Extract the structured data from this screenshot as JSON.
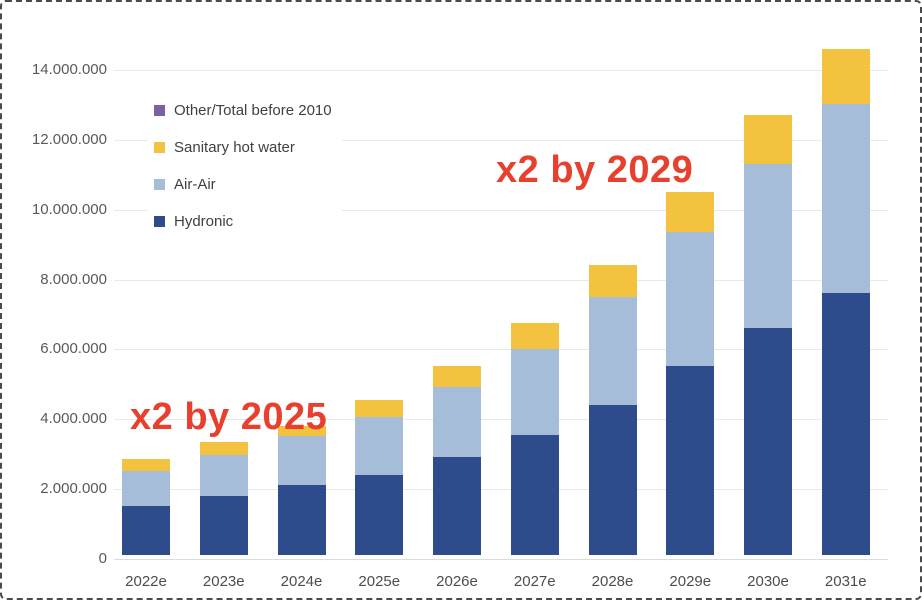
{
  "chart_data": {
    "type": "bar",
    "stacked": true,
    "title": "",
    "xlabel": "",
    "ylabel": "",
    "categories": [
      "2022e",
      "2023e",
      "2024e",
      "2025e",
      "2026e",
      "2027e",
      "2028e",
      "2029e",
      "2030e",
      "2031e"
    ],
    "series": [
      {
        "name": "Hydronic",
        "color": "#2e4b8b",
        "values": [
          1400000,
          1700000,
          2000000,
          2300000,
          2800000,
          3450000,
          4300000,
          5400000,
          6500000,
          7500000
        ]
      },
      {
        "name": "Air-Air",
        "color": "#a6bdda",
        "values": [
          1000000,
          1150000,
          1400000,
          1650000,
          2000000,
          2450000,
          3100000,
          3850000,
          4700000,
          5400000
        ]
      },
      {
        "name": "Sanitary hot water",
        "color": "#f3c340",
        "values": [
          350000,
          400000,
          300000,
          500000,
          600000,
          750000,
          900000,
          1150000,
          1400000,
          1600000
        ]
      },
      {
        "name": "Other/Total before 2010",
        "color": "#7a61a6",
        "values": [
          0,
          0,
          0,
          0,
          0,
          0,
          0,
          0,
          0,
          0
        ]
      }
    ],
    "totals": [
      2750000,
      3250000,
      3700000,
      4450000,
      5400000,
      6650000,
      8300000,
      10400000,
      12600000,
      14500000
    ],
    "ylim": [
      0,
      14000000
    ],
    "ytick_step": 2000000,
    "ytick_labels": [
      "0",
      "2.000.000",
      "4.000.000",
      "6.000.000",
      "8.000.000",
      "10.000.000",
      "12.000.000",
      "14.000.000"
    ],
    "grid": true,
    "legend_position": "top-left-inside",
    "legend_order": [
      "Other/Total before 2010",
      "Sanitary hot water",
      "Air-Air",
      "Hydronic"
    ],
    "annotations": [
      {
        "text": "x2 by 2025",
        "color": "#e8402f",
        "x": 128,
        "y": 394
      },
      {
        "text": "x2 by 2029",
        "color": "#e8402f",
        "x": 494,
        "y": 147
      }
    ]
  },
  "frame": {
    "border_style": "dashed",
    "border_color": "#4a4a4a",
    "background": "#ffffff"
  }
}
